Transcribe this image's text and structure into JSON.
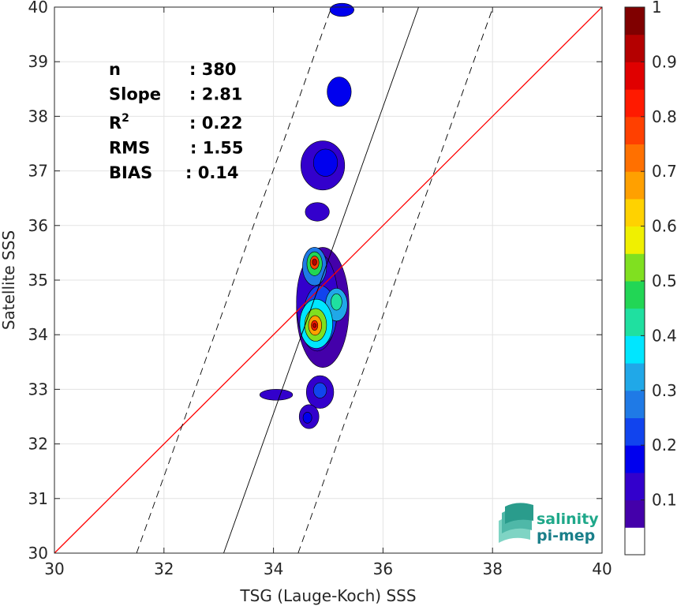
{
  "chart_data": {
    "type": "contour",
    "xlabel": "TSG (Lauge-Koch) SSS",
    "ylabel": "Satellite SSS",
    "xlim": [
      30,
      40
    ],
    "ylim": [
      30,
      40
    ],
    "xticks": [
      "30",
      "32",
      "34",
      "36",
      "38",
      "40"
    ],
    "yticks": [
      "30",
      "31",
      "32",
      "33",
      "34",
      "35",
      "36",
      "37",
      "38",
      "39",
      "40"
    ],
    "grid": true,
    "stats": [
      {
        "label": "n",
        "value": ": 380"
      },
      {
        "label": "Slope",
        "value": ": 2.81"
      },
      {
        "label": "R",
        "sup": "2",
        "value": ": 0.22"
      },
      {
        "label": "RMS",
        "value": ": 1.55"
      },
      {
        "label": "BIAS",
        "value": ": 0.14"
      }
    ],
    "lines": [
      {
        "role": "identity",
        "color": "#ff0000",
        "style": "solid",
        "points": [
          [
            30,
            30
          ],
          [
            40,
            40
          ]
        ]
      },
      {
        "role": "regression",
        "color": "#000000",
        "style": "solid",
        "points": [
          [
            33.09,
            30
          ],
          [
            36.65,
            40
          ]
        ]
      },
      {
        "role": "regression-minus",
        "color": "#000000",
        "style": "dashed",
        "points": [
          [
            31.5,
            30
          ],
          [
            35.06,
            40
          ]
        ]
      },
      {
        "role": "regression-plus",
        "color": "#000000",
        "style": "dashed",
        "points": [
          [
            34.45,
            30
          ],
          [
            38.01,
            40
          ]
        ]
      }
    ],
    "colorbar": {
      "ticks": [
        "0.1",
        "0.2",
        "0.3",
        "0.4",
        "0.5",
        "0.6",
        "0.7",
        "0.8",
        "0.9",
        "1"
      ],
      "levels": [
        "#ffffff",
        "#4400aa",
        "#3300cc",
        "#0000ee",
        "#1144ee",
        "#1f7ae6",
        "#20a8e8",
        "#00e6ff",
        "#1fe0a0",
        "#22d655",
        "#80e020",
        "#f0f000",
        "#ffd200",
        "#ffa000",
        "#ff7000",
        "#ff4000",
        "#ff1a00",
        "#e00000",
        "#b40000",
        "#800000"
      ]
    },
    "blobs": [
      {
        "cx": 35.25,
        "cy": 39.95,
        "rx": 0.22,
        "ry": 0.12,
        "level": 3
      },
      {
        "cx": 35.2,
        "cy": 38.45,
        "rx": 0.22,
        "ry": 0.27,
        "level": 3
      },
      {
        "cx": 34.9,
        "cy": 37.1,
        "rx": 0.4,
        "ry": 0.45,
        "level": 2
      },
      {
        "cx": 34.95,
        "cy": 37.15,
        "rx": 0.22,
        "ry": 0.25,
        "level": 3
      },
      {
        "cx": 34.8,
        "cy": 36.25,
        "rx": 0.22,
        "ry": 0.17,
        "level": 2
      },
      {
        "cx": 34.9,
        "cy": 34.5,
        "rx": 0.48,
        "ry": 1.1,
        "level": 1
      },
      {
        "cx": 34.8,
        "cy": 34.6,
        "rx": 0.38,
        "ry": 0.9,
        "level": 2
      },
      {
        "cx": 34.85,
        "cy": 34.35,
        "rx": 0.3,
        "ry": 0.55,
        "level": 4
      },
      {
        "cx": 34.75,
        "cy": 35.25,
        "rx": 0.22,
        "ry": 0.35,
        "level": 5
      },
      {
        "cx": 34.75,
        "cy": 35.3,
        "rx": 0.14,
        "ry": 0.22,
        "level": 9
      },
      {
        "cx": 34.75,
        "cy": 35.32,
        "rx": 0.08,
        "ry": 0.12,
        "level": 15
      },
      {
        "cx": 34.75,
        "cy": 35.33,
        "rx": 0.04,
        "ry": 0.06,
        "level": 18
      },
      {
        "cx": 35.15,
        "cy": 34.55,
        "rx": 0.2,
        "ry": 0.3,
        "level": 6
      },
      {
        "cx": 35.15,
        "cy": 34.6,
        "rx": 0.1,
        "ry": 0.15,
        "level": 8
      },
      {
        "cx": 34.78,
        "cy": 34.2,
        "rx": 0.3,
        "ry": 0.45,
        "level": 7
      },
      {
        "cx": 34.77,
        "cy": 34.18,
        "rx": 0.2,
        "ry": 0.3,
        "level": 10
      },
      {
        "cx": 34.76,
        "cy": 34.17,
        "rx": 0.12,
        "ry": 0.18,
        "level": 13
      },
      {
        "cx": 34.75,
        "cy": 34.17,
        "rx": 0.06,
        "ry": 0.09,
        "level": 16
      },
      {
        "cx": 34.75,
        "cy": 34.17,
        "rx": 0.03,
        "ry": 0.04,
        "level": 18
      },
      {
        "cx": 34.85,
        "cy": 32.95,
        "rx": 0.25,
        "ry": 0.3,
        "level": 2
      },
      {
        "cx": 34.85,
        "cy": 32.98,
        "rx": 0.12,
        "ry": 0.14,
        "level": 4
      },
      {
        "cx": 34.65,
        "cy": 32.5,
        "rx": 0.18,
        "ry": 0.22,
        "level": 2
      },
      {
        "cx": 34.62,
        "cy": 32.48,
        "rx": 0.08,
        "ry": 0.1,
        "level": 3
      },
      {
        "cx": 34.05,
        "cy": 32.9,
        "rx": 0.3,
        "ry": 0.1,
        "level": 2
      }
    ]
  },
  "logo": {
    "line1": "salinity",
    "line2": "pi-mep"
  }
}
